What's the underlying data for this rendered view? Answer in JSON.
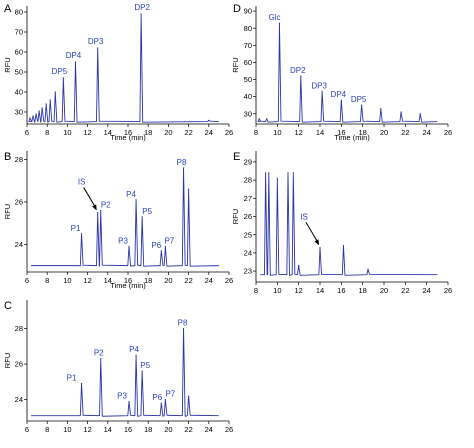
{
  "chart_data": [
    {
      "panel": "A",
      "type": "line",
      "xlabel": "Time (min)",
      "ylabel": "RFU",
      "xlim": [
        6,
        26
      ],
      "ylim": [
        24,
        83
      ],
      "xticks": [
        6,
        8,
        10,
        12,
        14,
        16,
        18,
        20,
        22,
        24,
        26
      ],
      "yticks": [
        30,
        40,
        50,
        60,
        70,
        80
      ],
      "baseline": 25.2,
      "peaks": [
        {
          "x": 6.3,
          "y": 27
        },
        {
          "x": 6.6,
          "y": 28
        },
        {
          "x": 6.9,
          "y": 29
        },
        {
          "x": 7.2,
          "y": 30.5
        },
        {
          "x": 7.5,
          "y": 32
        },
        {
          "x": 7.9,
          "y": 34
        },
        {
          "x": 8.3,
          "y": 36
        },
        {
          "x": 8.8,
          "y": 40
        },
        {
          "x": 9.6,
          "y": 47
        },
        {
          "x": 10.8,
          "y": 55
        },
        {
          "x": 13.0,
          "y": 62
        },
        {
          "x": 17.3,
          "y": 79
        },
        {
          "x": 24.0,
          "y": 25.8
        }
      ],
      "labels": [
        {
          "text": "DP5",
          "x": 9.6,
          "y": 47
        },
        {
          "text": "DP4",
          "x": 10.8,
          "y": 55
        },
        {
          "text": "DP3",
          "x": 13.0,
          "y": 62
        },
        {
          "text": "DP2",
          "x": 17.3,
          "y": 79
        }
      ]
    },
    {
      "panel": "B",
      "type": "line",
      "xlabel": "Time (min)",
      "ylabel": "RFU",
      "xlim": [
        6,
        26
      ],
      "ylim": [
        22.7,
        28.4
      ],
      "xticks": [
        6,
        8,
        10,
        12,
        14,
        16,
        18,
        20,
        22,
        24,
        26
      ],
      "yticks": [
        24,
        26,
        28
      ],
      "baseline": 23.0,
      "peaks": [
        {
          "x": 11.4,
          "y": 24.5
        },
        {
          "x": 13.0,
          "y": 25.5
        },
        {
          "x": 13.3,
          "y": 25.6
        },
        {
          "x": 16.1,
          "y": 23.9
        },
        {
          "x": 16.8,
          "y": 26.1
        },
        {
          "x": 17.4,
          "y": 25.3
        },
        {
          "x": 19.3,
          "y": 23.7
        },
        {
          "x": 19.7,
          "y": 23.9
        },
        {
          "x": 21.5,
          "y": 27.6
        },
        {
          "x": 22.0,
          "y": 26.6
        }
      ],
      "labels": [
        {
          "text": "P1",
          "x": 11.4,
          "y": 24.5
        },
        {
          "text": "P2",
          "x": 13.3,
          "y": 25.6
        },
        {
          "text": "P3",
          "x": 16.1,
          "y": 23.9
        },
        {
          "text": "P4",
          "x": 16.8,
          "y": 26.1
        },
        {
          "text": "P5",
          "x": 17.4,
          "y": 25.3
        },
        {
          "text": "P6",
          "x": 19.3,
          "y": 23.7
        },
        {
          "text": "P7",
          "x": 19.7,
          "y": 23.9
        },
        {
          "text": "P8",
          "x": 21.5,
          "y": 27.6
        }
      ],
      "annotation": {
        "text": "IS",
        "x": 13.0,
        "y": 25.5
      }
    },
    {
      "panel": "C",
      "type": "line",
      "xlabel": "",
      "ylabel": "RFU",
      "xlim": [
        6,
        26
      ],
      "ylim": [
        22.8,
        29.6
      ],
      "xticks": [
        6,
        8,
        10,
        12,
        14,
        16,
        18,
        20,
        22,
        24,
        26
      ],
      "yticks": [
        24,
        26,
        28
      ],
      "baseline": 23.1,
      "peaks": [
        {
          "x": 11.4,
          "y": 24.9
        },
        {
          "x": 13.3,
          "y": 26.3
        },
        {
          "x": 16.1,
          "y": 23.9
        },
        {
          "x": 16.8,
          "y": 26.5
        },
        {
          "x": 17.4,
          "y": 25.6
        },
        {
          "x": 19.3,
          "y": 23.8
        },
        {
          "x": 19.7,
          "y": 24.0
        },
        {
          "x": 21.5,
          "y": 28.0
        },
        {
          "x": 22.0,
          "y": 24.2
        }
      ],
      "labels": [
        {
          "text": "P1",
          "x": 11.4,
          "y": 24.9
        },
        {
          "text": "P2",
          "x": 13.3,
          "y": 26.3
        },
        {
          "text": "P3",
          "x": 16.1,
          "y": 23.9
        },
        {
          "text": "P4",
          "x": 16.8,
          "y": 26.5
        },
        {
          "text": "P5",
          "x": 17.4,
          "y": 25.6
        },
        {
          "text": "P6",
          "x": 19.3,
          "y": 23.8
        },
        {
          "text": "P7",
          "x": 19.7,
          "y": 24.0
        },
        {
          "text": "P8",
          "x": 21.5,
          "y": 28.0
        }
      ]
    },
    {
      "panel": "D",
      "type": "line",
      "xlabel": "Time (min)",
      "ylabel": "RFU",
      "xlim": [
        8,
        26
      ],
      "ylim": [
        24,
        93
      ],
      "xticks": [
        8,
        10,
        12,
        14,
        16,
        18,
        20,
        22,
        24,
        26
      ],
      "yticks": [
        30,
        40,
        50,
        60,
        70,
        80,
        90
      ],
      "baseline": 25.4,
      "peaks": [
        {
          "x": 10.2,
          "y": 83
        },
        {
          "x": 12.2,
          "y": 52
        },
        {
          "x": 14.2,
          "y": 43
        },
        {
          "x": 16.0,
          "y": 38
        },
        {
          "x": 17.9,
          "y": 35
        },
        {
          "x": 19.7,
          "y": 33
        },
        {
          "x": 21.6,
          "y": 31
        },
        {
          "x": 23.4,
          "y": 30
        },
        {
          "x": 8.3,
          "y": 27
        },
        {
          "x": 9.0,
          "y": 27
        }
      ],
      "labels": [
        {
          "text": "Glc",
          "x": 10.2,
          "y": 83
        },
        {
          "text": "DP2",
          "x": 12.2,
          "y": 52
        },
        {
          "text": "DP3",
          "x": 14.2,
          "y": 43
        },
        {
          "text": "DP4",
          "x": 16.0,
          "y": 38
        },
        {
          "text": "DP5",
          "x": 17.9,
          "y": 35
        }
      ]
    },
    {
      "panel": "E",
      "type": "line",
      "xlabel": "",
      "ylabel": "RFU",
      "xlim": [
        8,
        26
      ],
      "ylim": [
        22.4,
        29.6
      ],
      "xticks": [
        8,
        10,
        12,
        14,
        16,
        18,
        20,
        22,
        24,
        26
      ],
      "yticks": [
        23,
        24,
        25,
        26,
        27,
        28,
        29
      ],
      "baseline": 22.8,
      "peaks": [
        {
          "x": 8.9,
          "y": 28.4
        },
        {
          "x": 9.2,
          "y": 28.4
        },
        {
          "x": 10.0,
          "y": 28.1
        },
        {
          "x": 11.0,
          "y": 28.4
        },
        {
          "x": 11.5,
          "y": 28.4
        },
        {
          "x": 12.0,
          "y": 23.3
        },
        {
          "x": 14.0,
          "y": 24.3
        },
        {
          "x": 16.2,
          "y": 24.4
        },
        {
          "x": 18.5,
          "y": 23.1
        }
      ],
      "labels": [],
      "annotation": {
        "text": "IS",
        "x": 14.0,
        "y": 24.3
      }
    }
  ]
}
